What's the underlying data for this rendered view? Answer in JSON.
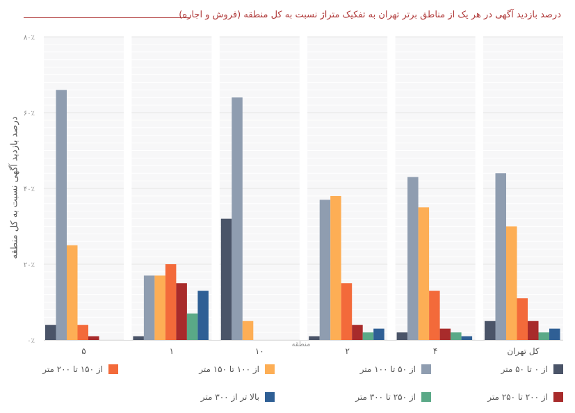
{
  "chart_data": {
    "type": "bar",
    "title": "درصد بازدید آگهی در هر یک از مناطق برتر تهران به تفکیک متراژ نسبت به کل منطقه (فروش و اجاره)",
    "ylabel": "درصد بازدید آگهی نسبت به کل منطقه",
    "xlabel": "منطقه",
    "ylim": [
      0,
      80
    ],
    "yticks": [
      {
        "value": 0,
        "label": "٠٪"
      },
      {
        "value": 20,
        "label": "٢٠٪"
      },
      {
        "value": 40,
        "label": "۴٠٪"
      },
      {
        "value": 60,
        "label": "۶٠٪"
      },
      {
        "value": 80,
        "label": "٨٠٪"
      }
    ],
    "categories": [
      "۵",
      "١",
      "١٠",
      "٢",
      "۴",
      "کل تهران"
    ],
    "series": [
      {
        "name": "از ٠ تا ۵٠ متر",
        "color": "#4a5468",
        "values": [
          4,
          1,
          32,
          1,
          2,
          5
        ]
      },
      {
        "name": "از ۵٠ تا ١٠٠ متر",
        "color": "#8f9db0",
        "values": [
          66,
          17,
          64,
          37,
          43,
          44
        ]
      },
      {
        "name": "از ١٠٠ تا ١۵٠ متر",
        "color": "#fdae55",
        "values": [
          25,
          17,
          5,
          38,
          35,
          30
        ]
      },
      {
        "name": "از ١۵٠ تا ٢٠٠ متر",
        "color": "#f36a3a",
        "values": [
          4,
          20,
          0,
          15,
          13,
          11
        ]
      },
      {
        "name": "از ٢٠٠ تا ٢۵٠ متر",
        "color": "#a82b2b",
        "values": [
          1,
          15,
          0,
          4,
          3,
          5
        ]
      },
      {
        "name": "از ٢۵٠ تا ٣٠٠ متر",
        "color": "#5aa987",
        "values": [
          0,
          7,
          0,
          2,
          2,
          2
        ]
      },
      {
        "name": "بالا تر از ٣٠٠ متر",
        "color": "#2f5f95",
        "values": [
          0,
          13,
          0,
          3,
          1,
          3
        ]
      }
    ],
    "grid": true,
    "legend_position": "bottom"
  }
}
